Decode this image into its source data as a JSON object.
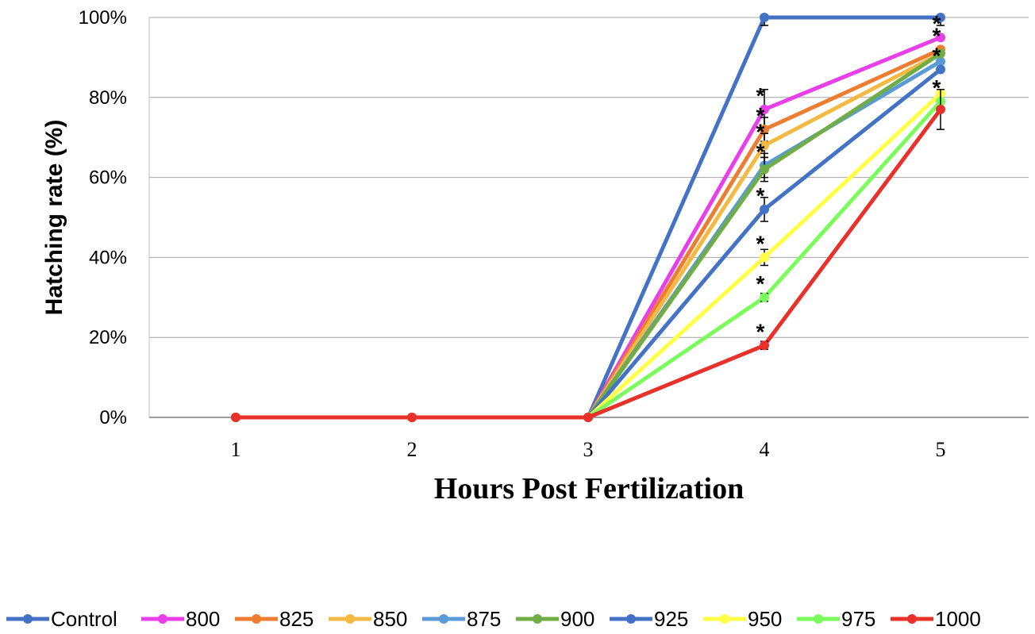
{
  "chart_data": {
    "type": "line",
    "title": "",
    "xlabel": "Hours Post Fertilization",
    "ylabel": "Hatching rate (%)",
    "x": [
      1,
      2,
      3,
      4,
      5
    ],
    "x_tick_labels": [
      "1",
      "2",
      "3",
      "4",
      "5"
    ],
    "y_tick_labels": [
      "0%",
      "20%",
      "40%",
      "60%",
      "80%",
      "100%"
    ],
    "ylim": [
      0,
      100
    ],
    "grid": "horizontal",
    "legend_position": "bottom",
    "significance_marker": "*",
    "series": [
      {
        "name": "Control",
        "color": "#4472C4",
        "values": [
          0,
          0,
          0,
          100,
          100
        ],
        "error": [
          0,
          0,
          0,
          2,
          2
        ],
        "significant": [
          false,
          false,
          false,
          false,
          false
        ]
      },
      {
        "name": "800",
        "color": "#E83FE8",
        "values": [
          0,
          0,
          0,
          77,
          95
        ],
        "error": [
          0,
          0,
          0,
          5,
          0
        ],
        "significant": [
          false,
          false,
          false,
          true,
          true
        ]
      },
      {
        "name": "825",
        "color": "#ED7D31",
        "values": [
          0,
          0,
          0,
          72,
          92
        ],
        "error": [
          0,
          0,
          0,
          3,
          0
        ],
        "significant": [
          false,
          false,
          false,
          true,
          true
        ]
      },
      {
        "name": "850",
        "color": "#F4B942",
        "values": [
          0,
          0,
          0,
          68,
          91
        ],
        "error": [
          0,
          0,
          0,
          3,
          0
        ],
        "significant": [
          false,
          false,
          false,
          true,
          false
        ]
      },
      {
        "name": "875",
        "color": "#5B9BD5",
        "values": [
          0,
          0,
          0,
          63,
          89
        ],
        "error": [
          0,
          0,
          0,
          3,
          0
        ],
        "significant": [
          false,
          false,
          false,
          true,
          false
        ]
      },
      {
        "name": "900",
        "color": "#70AD47",
        "values": [
          0,
          0,
          0,
          62,
          91
        ],
        "error": [
          0,
          0,
          0,
          3,
          0
        ],
        "significant": [
          false,
          false,
          false,
          false,
          false
        ]
      },
      {
        "name": "925",
        "color": "#4472C4",
        "values": [
          0,
          0,
          0,
          52,
          87
        ],
        "error": [
          0,
          0,
          0,
          3,
          0
        ],
        "significant": [
          false,
          false,
          false,
          true,
          true
        ]
      },
      {
        "name": "950",
        "color": "#FFFF44",
        "values": [
          0,
          0,
          0,
          40,
          81
        ],
        "error": [
          0,
          0,
          0,
          2,
          0
        ],
        "significant": [
          false,
          false,
          false,
          true,
          false
        ]
      },
      {
        "name": "975",
        "color": "#7CFC5C",
        "values": [
          0,
          0,
          0,
          30,
          79
        ],
        "error": [
          0,
          0,
          0,
          1,
          0
        ],
        "significant": [
          false,
          false,
          false,
          true,
          true
        ]
      },
      {
        "name": "1000",
        "color": "#E8312A",
        "values": [
          0,
          0,
          0,
          18,
          77
        ],
        "error": [
          0,
          0,
          0,
          1,
          5
        ],
        "significant": [
          false,
          false,
          false,
          true,
          false
        ]
      }
    ]
  }
}
